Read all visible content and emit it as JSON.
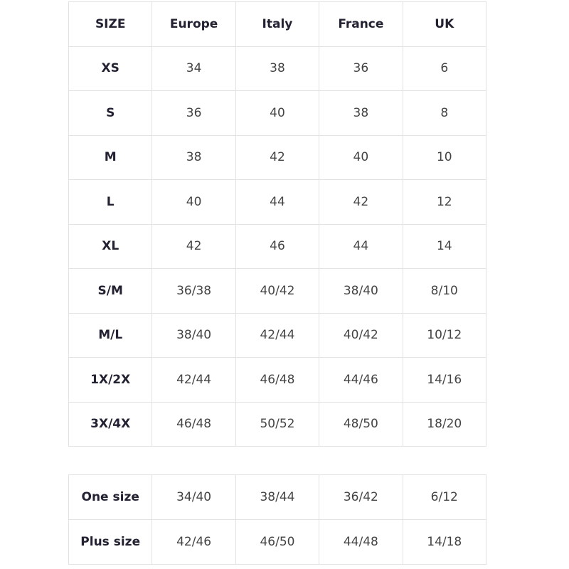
{
  "size_table": {
    "headers": [
      "SIZE",
      "Europe",
      "Italy",
      "France",
      "UK"
    ],
    "rows": [
      [
        "XS",
        "34",
        "38",
        "36",
        "6"
      ],
      [
        "S",
        "36",
        "40",
        "38",
        "8"
      ],
      [
        "M",
        "38",
        "42",
        "40",
        "10"
      ],
      [
        "L",
        "40",
        "44",
        "42",
        "12"
      ],
      [
        "XL",
        "42",
        "46",
        "44",
        "14"
      ],
      [
        "S/M",
        "36/38",
        "40/42",
        "38/40",
        "8/10"
      ],
      [
        "M/L",
        "38/40",
        "42/44",
        "40/42",
        "10/12"
      ],
      [
        "1X/2X",
        "42/44",
        "46/48",
        "44/46",
        "14/16"
      ],
      [
        "3X/4X",
        "46/48",
        "50/52",
        "48/50",
        "18/20"
      ]
    ]
  },
  "extra_table": {
    "rows": [
      [
        "One size",
        "34/40",
        "38/44",
        "36/42",
        "6/12"
      ],
      [
        "Plus size",
        "42/46",
        "46/50",
        "44/48",
        "14/18"
      ]
    ]
  }
}
